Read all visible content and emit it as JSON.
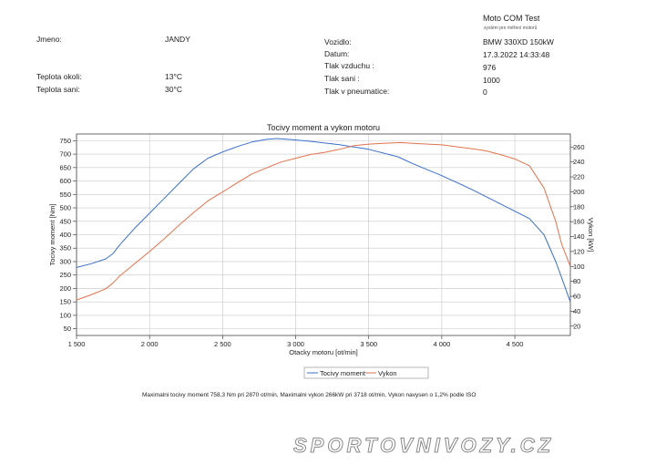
{
  "brand": {
    "title": "Moto COM Test",
    "subtitle": "systém pro měření motorů"
  },
  "left_info": [
    {
      "label": "Jmeno:",
      "value": "JANDY"
    },
    {
      "label": "Teplota okoli:",
      "value": "13°C"
    },
    {
      "label": "Teplota sani:",
      "value": "30°C"
    }
  ],
  "right_info": [
    {
      "label": "Vozidlo:",
      "value": "BMW 330XD 150kW"
    },
    {
      "label": "Datum:",
      "value": "17.3.2022 14:33:48"
    },
    {
      "label": "Tlak vzduchu :",
      "value": "976"
    },
    {
      "label": "Tlak sani :",
      "value": "1000"
    },
    {
      "label": "Tlak v pneumatice:",
      "value": "0"
    }
  ],
  "footer_text": "Maximalni tocivy moment 758,3 Nm pri 2870 ot/min,  Maximalni vykon 266kW pri 3718 ot/min,  Vykon navysen o 1,2% podle ISO",
  "watermark": "SPORTOVNIVOZY.CZ",
  "colors": {
    "torque": "#3a6fc8",
    "power": "#e2724d",
    "grid": "#c8c8c8",
    "axis": "#444444"
  },
  "chart_data": {
    "type": "line",
    "title": "Tocivy moment a vykon motoru",
    "xlabel": "Otacky motoru [ot/min]",
    "ylabel": "Tocivy moment [Nm]",
    "y2label": "Vykon [kW]",
    "xlim": [
      1500,
      4880
    ],
    "ylim": [
      25,
      775
    ],
    "y2lim": [
      7.5,
      277.5
    ],
    "xticks": [
      1500,
      2000,
      2500,
      3000,
      3500,
      4000,
      4500
    ],
    "xticklabels": [
      "1 500",
      "2 000",
      "2 500",
      "3 000",
      "3 500",
      "4 000",
      "4 500"
    ],
    "yticks": [
      50,
      100,
      150,
      200,
      250,
      300,
      350,
      400,
      450,
      500,
      550,
      600,
      650,
      700,
      750
    ],
    "y2ticks": [
      20,
      40,
      60,
      80,
      100,
      120,
      140,
      160,
      180,
      200,
      220,
      240,
      260
    ],
    "grid": true,
    "legend_position": "bottom-center",
    "series": [
      {
        "name": "Tocivy moment",
        "axis": "left",
        "x": [
          1500,
          1600,
          1700,
          1750,
          1800,
          1900,
          2000,
          2100,
          2200,
          2300,
          2400,
          2500,
          2600,
          2700,
          2800,
          2870,
          2950,
          3100,
          3300,
          3500,
          3700,
          3800,
          4000,
          4200,
          4400,
          4600,
          4700,
          4780,
          4820,
          4880
        ],
        "y": [
          278,
          292,
          310,
          330,
          365,
          425,
          480,
          535,
          590,
          645,
          685,
          708,
          728,
          745,
          755,
          758,
          755,
          748,
          735,
          718,
          690,
          665,
          620,
          570,
          515,
          460,
          400,
          300,
          240,
          150
        ]
      },
      {
        "name": "Vykon",
        "axis": "right",
        "x": [
          1500,
          1600,
          1700,
          1750,
          1800,
          1900,
          2000,
          2100,
          2200,
          2300,
          2400,
          2500,
          2600,
          2700,
          2800,
          2900,
          3000,
          3100,
          3200,
          3300,
          3400,
          3500,
          3600,
          3718,
          3800,
          4000,
          4200,
          4300,
          4400,
          4500,
          4600,
          4700,
          4780,
          4820,
          4880
        ],
        "y": [
          55,
          62,
          70,
          78,
          88,
          104,
          120,
          137,
          155,
          172,
          188,
          200,
          212,
          224,
          232,
          240,
          245,
          250,
          253,
          257,
          262,
          264,
          265,
          266,
          265,
          263,
          258,
          255,
          250,
          244,
          235,
          205,
          160,
          130,
          100
        ]
      }
    ]
  }
}
